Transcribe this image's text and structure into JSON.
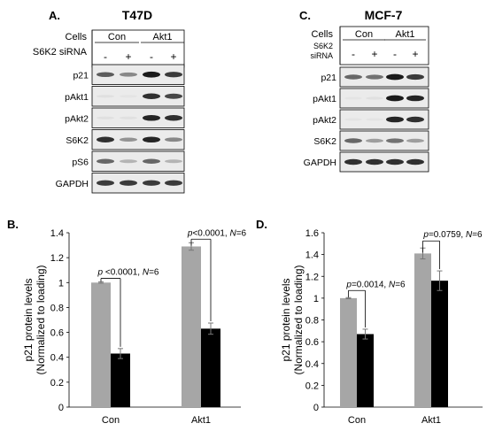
{
  "panel_a": {
    "letter": "A.",
    "cell_line": "T47D",
    "row_labels": [
      "Cells",
      "S6K2 siRNA"
    ],
    "groups": [
      "Con",
      "Akt1"
    ],
    "signs": [
      "-",
      "+",
      "-",
      "+"
    ],
    "bands": [
      "p21",
      "pAkt1",
      "pAkt2",
      "S6K2",
      "pS6",
      "GAPDH"
    ],
    "intensity": [
      [
        0.65,
        0.45,
        0.95,
        0.8
      ],
      [
        0.05,
        0.03,
        0.85,
        0.75
      ],
      [
        0.05,
        0.05,
        0.9,
        0.85
      ],
      [
        0.85,
        0.4,
        0.9,
        0.45
      ],
      [
        0.6,
        0.25,
        0.6,
        0.25
      ],
      [
        0.8,
        0.8,
        0.8,
        0.8
      ]
    ]
  },
  "panel_c": {
    "letter": "C.",
    "cell_line": "MCF-7",
    "row_labels": [
      "Cells",
      "S6K2",
      "siRNA"
    ],
    "groups": [
      "Con",
      "Akt1"
    ],
    "signs": [
      "-",
      "+",
      "-",
      "+"
    ],
    "bands": [
      "p21",
      "pAkt1",
      "pAkt2",
      "S6K2",
      "GAPDH"
    ],
    "intensity": [
      [
        0.6,
        0.55,
        0.95,
        0.8
      ],
      [
        0.03,
        0.05,
        0.95,
        0.9
      ],
      [
        0.03,
        0.03,
        0.9,
        0.85
      ],
      [
        0.6,
        0.35,
        0.55,
        0.35
      ],
      [
        0.85,
        0.85,
        0.85,
        0.85
      ]
    ]
  },
  "chart_data": [
    {
      "type": "bar",
      "letter": "B.",
      "categories": [
        "Con",
        "Akt1"
      ],
      "series": [
        {
          "values": [
            1.0,
            1.29
          ],
          "errors": [
            0.005,
            0.03
          ],
          "color": "#a6a6a6"
        },
        {
          "values": [
            0.43,
            0.63
          ],
          "errors": [
            0.04,
            0.045
          ],
          "color": "#000000"
        }
      ],
      "ylabel": [
        "p21 protein levels",
        "(Normalized to loading)"
      ],
      "ylim": [
        0,
        1.4
      ],
      "yticks": [
        "0",
        "0.2",
        "0.4",
        "0.6",
        "0.8",
        "1",
        "1.2",
        "1.4"
      ],
      "annotations": [
        {
          "p": "p",
          "mid": " <0.0001, ",
          "n": "N",
          "rest": "=6"
        },
        {
          "p": "p",
          "mid": "<0.0001, ",
          "n": "N",
          "rest": "=6"
        }
      ]
    },
    {
      "type": "bar",
      "letter": "D.",
      "categories": [
        "Con",
        "Akt1"
      ],
      "series": [
        {
          "values": [
            1.0,
            1.41
          ],
          "errors": [
            0.005,
            0.05
          ],
          "color": "#a6a6a6"
        },
        {
          "values": [
            0.67,
            1.16
          ],
          "errors": [
            0.045,
            0.09
          ],
          "color": "#000000"
        }
      ],
      "ylabel": [
        "p21 protein levels",
        "(Normalized to loading)"
      ],
      "ylim": [
        0,
        1.6
      ],
      "yticks": [
        "0",
        "0.2",
        "0.4",
        "0.6",
        "0.8",
        "1",
        "1.2",
        "1.4",
        "1.6"
      ],
      "annotations": [
        {
          "p": "p",
          "mid": "=0.0014, ",
          "n": "N",
          "rest": "=6"
        },
        {
          "p": "p",
          "mid": "=0.0759, ",
          "n": "N",
          "rest": "=6"
        }
      ]
    }
  ]
}
